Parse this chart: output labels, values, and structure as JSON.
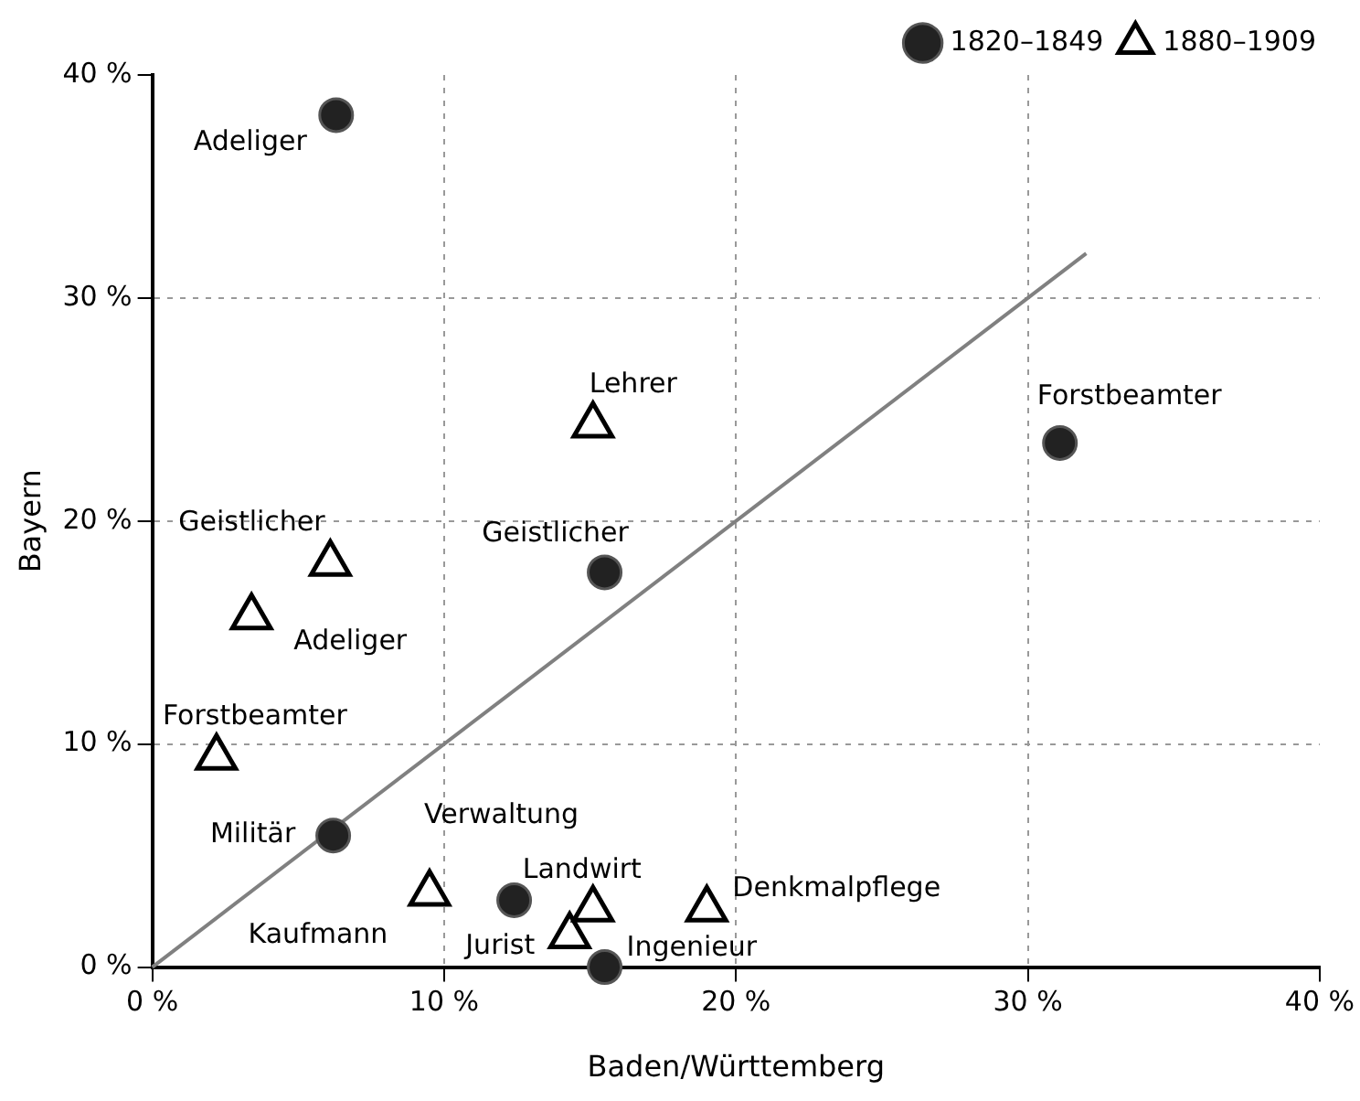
{
  "chart_data": {
    "type": "scatter",
    "xlabel": "Baden/Württemberg",
    "ylabel": "Bayern",
    "xlim": [
      0,
      40
    ],
    "ylim": [
      0,
      40
    ],
    "xticks": [
      {
        "value": 0,
        "label": "0 %"
      },
      {
        "value": 10,
        "label": "10 %"
      },
      {
        "value": 20,
        "label": "20 %"
      },
      {
        "value": 30,
        "label": "30 %"
      },
      {
        "value": 40,
        "label": "40 %"
      }
    ],
    "yticks": [
      {
        "value": 0,
        "label": "0 %"
      },
      {
        "value": 10,
        "label": "10 %"
      },
      {
        "value": 20,
        "label": "20 %"
      },
      {
        "value": 30,
        "label": "30 %"
      },
      {
        "value": 40,
        "label": "40 %"
      }
    ],
    "grid": true,
    "legend": "top right",
    "series": [
      {
        "name": "1820–1849",
        "color": "#222222",
        "marker": "circle",
        "x": [
          6.3,
          31.1,
          15.5,
          6.2,
          12.4,
          15.5
        ],
        "values": [
          38.2,
          23.5,
          17.7,
          5.9,
          3.0,
          0
        ],
        "value_labels": [
          "Adeliger",
          "Forstbeamter",
          "Geistlicher",
          "Militär",
          "Verwaltung",
          "Ingenieur"
        ]
      },
      {
        "name": "1880–1909",
        "color": "#000000",
        "marker": "triangle",
        "x": [
          15.1,
          6.1,
          3.4,
          2.2,
          9.5,
          15.1,
          14.3,
          19.0
        ],
        "values": [
          24.3,
          18.1,
          15.7,
          9.4,
          3.3,
          2.6,
          1.4,
          2.6
        ],
        "value_labels": [
          "Lehrer",
          "Geistlicher",
          "Adeliger",
          "Forstbeamter",
          "Kaufmann",
          "Landwirt",
          "Jurist",
          "Denkmalpflege"
        ]
      },
      {
        "type": "line",
        "color": "#808080",
        "marker": "none",
        "x": [
          0,
          32
        ],
        "values": [
          0,
          32
        ]
      }
    ]
  }
}
